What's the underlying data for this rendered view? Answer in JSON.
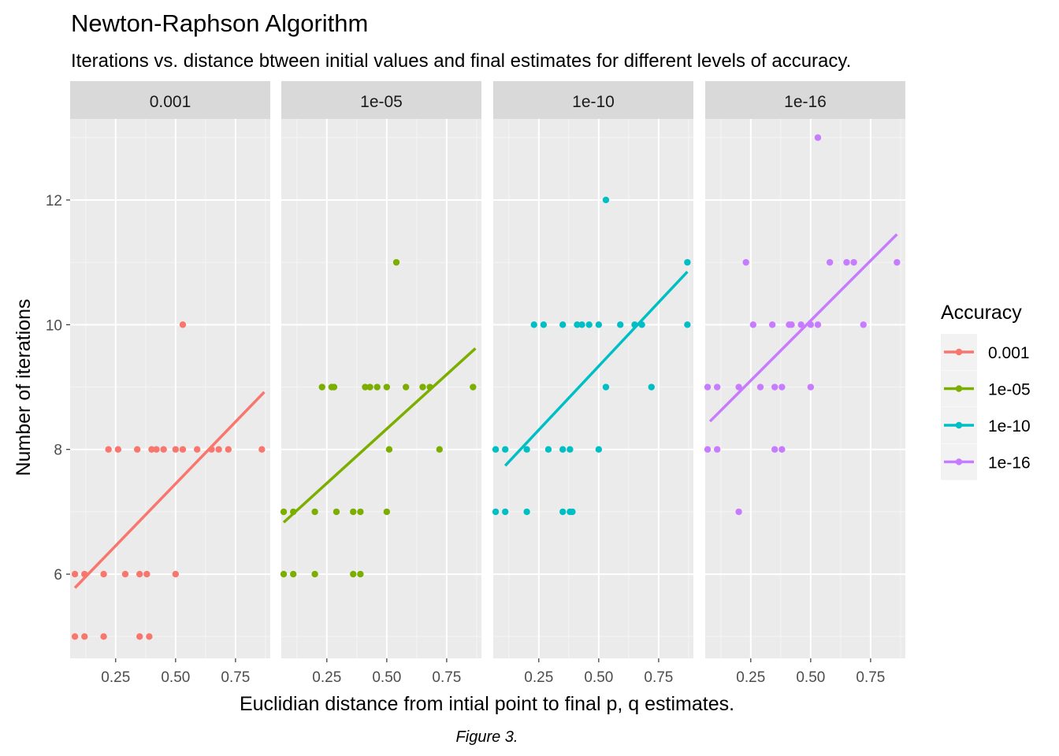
{
  "chart_data": {
    "type": "scatter",
    "title": "Newton-Raphson Algorithm",
    "subtitle": "Iterations vs. distance btween initial values and final estimates for different levels of accuracy.",
    "xlabel": "Euclidian distance from intial point to final p, q estimates.",
    "ylabel": "Number of iterations",
    "caption": "Figure 3.",
    "xlim": [
      0.06,
      0.895
    ],
    "ylim": [
      4.65,
      13.3
    ],
    "x_ticks": [
      0.25,
      0.5,
      0.75
    ],
    "x_tick_labels": [
      "0.25",
      "0.50",
      "0.75"
    ],
    "y_ticks": [
      6,
      8,
      10,
      12
    ],
    "y_tick_labels": [
      "6",
      "8",
      "10",
      "12"
    ],
    "grid": true,
    "legend": {
      "title": "Accuracy",
      "position": "right",
      "entries": [
        "0.001",
        "1e-05",
        "1e-10",
        "1e-16"
      ]
    },
    "panels": [
      {
        "label": "0.001",
        "color": "#F8766D",
        "trend": {
          "x": [
            0.08,
            0.87
          ],
          "y": [
            5.78,
            8.92
          ]
        },
        "points": [
          [
            0.08,
            6
          ],
          [
            0.12,
            6
          ],
          [
            0.2,
            6
          ],
          [
            0.29,
            6
          ],
          [
            0.35,
            6
          ],
          [
            0.38,
            6
          ],
          [
            0.5,
            6
          ],
          [
            0.08,
            5
          ],
          [
            0.12,
            5
          ],
          [
            0.2,
            5
          ],
          [
            0.35,
            5
          ],
          [
            0.39,
            5
          ],
          [
            0.22,
            8
          ],
          [
            0.26,
            8
          ],
          [
            0.34,
            8
          ],
          [
            0.4,
            8
          ],
          [
            0.42,
            8
          ],
          [
            0.45,
            8
          ],
          [
            0.5,
            8
          ],
          [
            0.53,
            8
          ],
          [
            0.59,
            8
          ],
          [
            0.65,
            8
          ],
          [
            0.68,
            8
          ],
          [
            0.72,
            8
          ],
          [
            0.86,
            8
          ],
          [
            0.53,
            10
          ]
        ]
      },
      {
        "label": "1e-05",
        "color": "#7CAE00",
        "trend": {
          "x": [
            0.07,
            0.87
          ],
          "y": [
            6.83,
            9.62
          ]
        },
        "points": [
          [
            0.07,
            6
          ],
          [
            0.11,
            6
          ],
          [
            0.2,
            6
          ],
          [
            0.36,
            6
          ],
          [
            0.39,
            6
          ],
          [
            0.07,
            7
          ],
          [
            0.11,
            7
          ],
          [
            0.2,
            7
          ],
          [
            0.29,
            7
          ],
          [
            0.36,
            7
          ],
          [
            0.39,
            7
          ],
          [
            0.5,
            7
          ],
          [
            0.51,
            8
          ],
          [
            0.72,
            8
          ],
          [
            0.23,
            9
          ],
          [
            0.27,
            9
          ],
          [
            0.28,
            9
          ],
          [
            0.41,
            9
          ],
          [
            0.43,
            9
          ],
          [
            0.46,
            9
          ],
          [
            0.5,
            9
          ],
          [
            0.58,
            9
          ],
          [
            0.65,
            9
          ],
          [
            0.68,
            9
          ],
          [
            0.86,
            9
          ],
          [
            0.54,
            11
          ]
        ]
      },
      {
        "label": "1e-10",
        "color": "#00BFC4",
        "trend": {
          "x": [
            0.11,
            0.87
          ],
          "y": [
            7.74,
            10.85
          ]
        },
        "points": [
          [
            0.07,
            7
          ],
          [
            0.11,
            7
          ],
          [
            0.2,
            7
          ],
          [
            0.35,
            7
          ],
          [
            0.38,
            7
          ],
          [
            0.39,
            7
          ],
          [
            0.07,
            8
          ],
          [
            0.11,
            8
          ],
          [
            0.2,
            8
          ],
          [
            0.29,
            8
          ],
          [
            0.35,
            8
          ],
          [
            0.38,
            8
          ],
          [
            0.5,
            8
          ],
          [
            0.53,
            9
          ],
          [
            0.72,
            9
          ],
          [
            0.23,
            10
          ],
          [
            0.27,
            10
          ],
          [
            0.35,
            10
          ],
          [
            0.41,
            10
          ],
          [
            0.43,
            10
          ],
          [
            0.46,
            10
          ],
          [
            0.5,
            10
          ],
          [
            0.59,
            10
          ],
          [
            0.65,
            10
          ],
          [
            0.68,
            10
          ],
          [
            0.87,
            10
          ],
          [
            0.87,
            11
          ],
          [
            0.53,
            12
          ]
        ]
      },
      {
        "label": "1e-16",
        "color": "#C77CFF",
        "trend": {
          "x": [
            0.08,
            0.86
          ],
          "y": [
            8.45,
            11.45
          ]
        },
        "points": [
          [
            0.2,
            7
          ],
          [
            0.07,
            8
          ],
          [
            0.11,
            8
          ],
          [
            0.35,
            8
          ],
          [
            0.38,
            8
          ],
          [
            0.07,
            9
          ],
          [
            0.11,
            9
          ],
          [
            0.2,
            9
          ],
          [
            0.29,
            9
          ],
          [
            0.35,
            9
          ],
          [
            0.38,
            9
          ],
          [
            0.5,
            9
          ],
          [
            0.26,
            10
          ],
          [
            0.34,
            10
          ],
          [
            0.41,
            10
          ],
          [
            0.42,
            10
          ],
          [
            0.46,
            10
          ],
          [
            0.5,
            10
          ],
          [
            0.53,
            10
          ],
          [
            0.72,
            10
          ],
          [
            0.23,
            11
          ],
          [
            0.58,
            11
          ],
          [
            0.65,
            11
          ],
          [
            0.68,
            11
          ],
          [
            0.86,
            11
          ],
          [
            0.53,
            13
          ]
        ]
      }
    ]
  }
}
